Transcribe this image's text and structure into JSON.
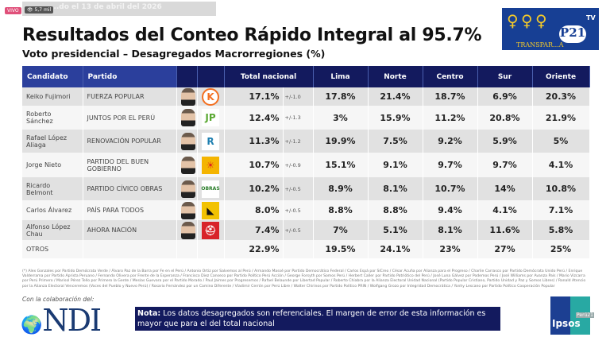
{
  "top": {
    "live_badge": "VIVO",
    "views": "5,7 mil",
    "stream_title": "...do el 13 de abril del 2026"
  },
  "title": "Resultados del Conteo Rápido Integral al 95.7%",
  "subtitle": "Voto presidencial – Desagregados Macrorregiones (%)",
  "logo": {
    "brand": "P21",
    "tv": "TV",
    "tagline": "TRANSPAR...A"
  },
  "table": {
    "headers": [
      "Candidato",
      "Partido",
      "",
      "",
      "Total nacional",
      "Lima",
      "Norte",
      "Centro",
      "Sur",
      "Oriente"
    ],
    "rows": [
      {
        "candidate": "Keiko Fujimori",
        "party": "FUERZA POPULAR",
        "logo": "K",
        "logo_color": "#f37021",
        "total": "17.1%",
        "moe": "+/-1.0",
        "lima": "17.8%",
        "norte": "21.4%",
        "centro": "18.7%",
        "sur": "6.9%",
        "oriente": "20.3%"
      },
      {
        "candidate": "Roberto Sánchez",
        "party": "JUNTOS POR EL PERÚ",
        "logo": "JP",
        "logo_color": "#5aa832",
        "total": "12.4%",
        "moe": "+/-1.3",
        "lima": "3%",
        "norte": "15.9%",
        "centro": "11.2%",
        "sur": "20.8%",
        "oriente": "21.9%"
      },
      {
        "candidate": "Rafael López Aliaga",
        "party": "RENOVACIÓN POPULAR",
        "logo": "R",
        "logo_color": "#1e7fb0",
        "total": "11.3%",
        "moe": "+/-1.2",
        "lima": "19.9%",
        "norte": "7.5%",
        "centro": "9.2%",
        "sur": "5.9%",
        "oriente": "5%"
      },
      {
        "candidate": "Jorge Nieto",
        "party": "PARTIDO DEL BUEN GOBIERNO",
        "logo": "☀",
        "logo_color": "#e0261b",
        "total": "10.7%",
        "moe": "+/-0.9",
        "lima": "15.1%",
        "norte": "9.1%",
        "centro": "9.7%",
        "sur": "9.7%",
        "oriente": "4.1%"
      },
      {
        "candidate": "Ricardo Belmont",
        "party": "PARTIDO CÍVICO OBRAS",
        "logo": "OBRAS",
        "logo_color": "#2a7d2a",
        "total": "10.2%",
        "moe": "+/-0.5",
        "lima": "8.9%",
        "norte": "8.1%",
        "centro": "10.7%",
        "sur": "14%",
        "oriente": "10.8%"
      },
      {
        "candidate": "Carlos Álvarez",
        "party": "PAÍS PARA TODOS",
        "logo": "◣",
        "logo_color": "#111",
        "total": "8.0%",
        "moe": "+/-0.5",
        "lima": "8.8%",
        "norte": "8.8%",
        "centro": "9.4%",
        "sur": "4.1%",
        "oriente": "7.1%"
      },
      {
        "candidate": "Alfonso López Chau",
        "party": "AHORA NACIÓN",
        "logo": "⛑",
        "logo_color": "#fff",
        "total": "7.4%",
        "moe": "+/-0.5",
        "lima": "7%",
        "norte": "5.1%",
        "centro": "8.1%",
        "sur": "11.6%",
        "oriente": "5.8%"
      },
      {
        "candidate": "OTROS",
        "party": "",
        "total": "22.9%",
        "moe": "",
        "lima": "19.5%",
        "norte": "24.1%",
        "centro": "23%",
        "sur": "27%",
        "oriente": "25%"
      }
    ]
  },
  "footnote": "(*) Alex Gonzales por Partido Demócrata Verde / Álvaro Paz de la Barra por Fe en el Perú / Antonio Ortiz por Salvemos al Perú / Armando Massé por Partido Democrático Federal / Carlos Espá por SíCreo / César Acuña por Alianza para el Progreso / Charlie Carrasco por Partido Demócrata Unido Perú / Enrique Valderrama por Partido Aprista Peruano / Fernando Olivera por Frente de la Esperanza / Francisco Diez Canseco por Partido Político Perú Acción / George Forsyth por Somos Perú / Herbert Caller por Partido Patriótico del Perú / José Luna Gálvez por Podemos Perú / José Williams por Avanza País / Mario Vizcarra por Perú Primero / Marisol Pérez Tello por Primero la Gente / Mesías Guevara por el Partido Morado / Paul Jaimes por Progresemos / Rafael Belaunde por Libertad Popular / Roberto Chiabra por la Alianza Electoral Unidad Nacional (Partido Popular Cristiano, Partido Unidad y Paz y Somos Libres) / Ronald Atencio por la Alianza Electoral Venceremos (Voces del Pueblo y Nuevo Perú) / Rosario Fernández por un Camino Diferente / Vladimir Cerrón por Perú Libre / Walter Chirinos por Partido Político PRIN / Wolfgang Grozo por Integridad Democrática / Yonhy Lescano por Partido Político Cooperación Popular",
  "collab_label": "Con la colaboración del:",
  "ndi_logo": "NDI",
  "note": {
    "label": "Nota:",
    "text": " Los datos desagregados son referenciales. El margen de error de esta información es mayor que para el del total nacional"
  },
  "ipsos_logo": {
    "name": "Ipsos",
    "tag": "Perú21"
  }
}
